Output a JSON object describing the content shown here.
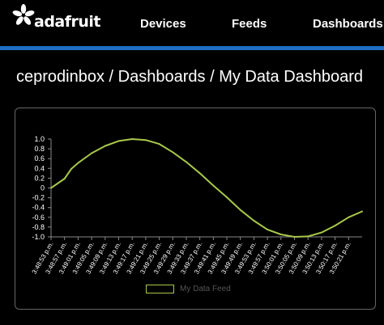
{
  "app": {
    "logo_text": "adafruit",
    "accent_color": "#1f6fc5"
  },
  "nav": {
    "items": [
      {
        "label": "Devices"
      },
      {
        "label": "Feeds"
      },
      {
        "label": "Dashboards"
      }
    ]
  },
  "breadcrumb": {
    "user": "ceprodinbox",
    "separator": "/",
    "section": "Dashboards",
    "page": "My Data Dashboard"
  },
  "chart_data": {
    "type": "line",
    "title": "",
    "xlabel": "",
    "ylabel": "",
    "ylim": [
      -1.0,
      1.0
    ],
    "yticks": [
      "1.0",
      "0.8",
      "0.6",
      "0.4",
      "0.2",
      "0",
      "-0.2",
      "-0.4",
      "-0.6",
      "-0.8",
      "-1.0"
    ],
    "categories": [
      "3:48:53 p.m.",
      "3:48:57 p.m.",
      "3:49:01 p.m.",
      "3:49:05 p.m.",
      "3:49:09 p.m.",
      "3:49:13 p.m.",
      "3:49:17 p.m.",
      "3:49:21 p.m.",
      "3:49:25 p.m.",
      "3:49:29 p.m.",
      "3:49:33 p.m.",
      "3:49:37 p.m.",
      "3:49:41 p.m.",
      "3:49:45 p.m.",
      "3:49:49 p.m.",
      "3:49:53 p.m.",
      "3:49:57 p.m.",
      "3:50:01 p.m.",
      "3:50:05 p.m.",
      "3:50:09 p.m.",
      "3:50:13 p.m.",
      "3:50:17 p.m.",
      "3:50:21 p.m."
    ],
    "series": [
      {
        "name": "My Data Feed",
        "color": "#a8c84a",
        "x": [
          "3:48:53 p.m.",
          "3:48:57 p.m.",
          "3:48:59 p.m.",
          "3:49:01 p.m.",
          "3:49:05 p.m.",
          "3:49:09 p.m.",
          "3:49:13 p.m.",
          "3:49:17 p.m.",
          "3:49:21 p.m.",
          "3:49:25 p.m.",
          "3:49:29 p.m.",
          "3:49:33 p.m.",
          "3:49:37 p.m.",
          "3:49:41 p.m.",
          "3:49:45 p.m.",
          "3:49:49 p.m.",
          "3:49:53 p.m.",
          "3:49:57 p.m.",
          "3:50:01 p.m.",
          "3:50:05 p.m.",
          "3:50:09 p.m.",
          "3:50:13 p.m.",
          "3:50:17 p.m.",
          "3:50:21 p.m.",
          "3:50:25 p.m."
        ],
        "values": [
          0.0,
          0.19,
          0.39,
          0.51,
          0.71,
          0.86,
          0.96,
          1.0,
          0.98,
          0.9,
          0.73,
          0.53,
          0.3,
          0.05,
          -0.19,
          -0.45,
          -0.67,
          -0.85,
          -0.95,
          -1.0,
          -0.99,
          -0.91,
          -0.77,
          -0.6,
          -0.48
        ]
      }
    ],
    "grid": false,
    "legend": "bottom"
  }
}
